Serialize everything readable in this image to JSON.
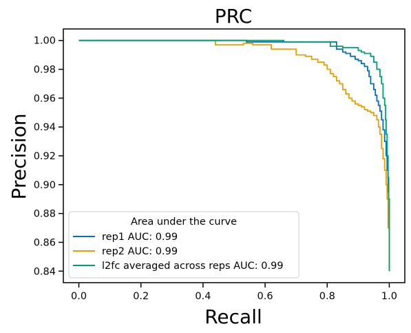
{
  "chart_data": {
    "type": "line",
    "title": "PRC",
    "xlabel": "Recall",
    "ylabel": "Precision",
    "xlim": [
      -0.05,
      1.05
    ],
    "ylim": [
      0.832,
      1.008
    ],
    "xticks": [
      0.0,
      0.2,
      0.4,
      0.6,
      0.8,
      1.0
    ],
    "xtick_labels": [
      "0.0",
      "0.2",
      "0.4",
      "0.6",
      "0.8",
      "1.0"
    ],
    "yticks": [
      0.84,
      0.86,
      0.88,
      0.9,
      0.92,
      0.94,
      0.96,
      0.98,
      1.0
    ],
    "ytick_labels": [
      "0.84",
      "0.86",
      "0.88",
      "0.90",
      "0.92",
      "0.94",
      "0.96",
      "0.98",
      "1.00"
    ],
    "grid": false,
    "legend": {
      "title": "Area under the curve",
      "placement": "lower-left"
    },
    "series": [
      {
        "name": "rep1 AUC: 0.99",
        "color": "#0072b2",
        "x": [
          0.0,
          0.53,
          0.54,
          0.82,
          0.83,
          0.85,
          0.86,
          0.875,
          0.89,
          0.9,
          0.91,
          0.92,
          0.93,
          0.935,
          0.94,
          0.95,
          0.955,
          0.96,
          0.965,
          0.97,
          0.975,
          0.98,
          0.985,
          0.99,
          0.993,
          0.996,
          0.998,
          1.0
        ],
        "y": [
          1.0,
          1.0,
          0.999,
          0.999,
          0.994,
          0.992,
          0.991,
          0.989,
          0.987,
          0.986,
          0.984,
          0.982,
          0.979,
          0.975,
          0.97,
          0.966,
          0.962,
          0.958,
          0.955,
          0.951,
          0.945,
          0.938,
          0.93,
          0.92,
          0.91,
          0.895,
          0.87,
          0.84
        ]
      },
      {
        "name": "rep2 AUC: 0.99",
        "color": "#e69f00",
        "x": [
          0.0,
          0.43,
          0.44,
          0.53,
          0.56,
          0.62,
          0.69,
          0.7,
          0.73,
          0.75,
          0.77,
          0.79,
          0.8,
          0.81,
          0.82,
          0.83,
          0.84,
          0.85,
          0.86,
          0.87,
          0.88,
          0.89,
          0.9,
          0.91,
          0.92,
          0.93,
          0.94,
          0.95,
          0.96,
          0.965,
          0.97,
          0.975,
          0.98,
          0.985,
          0.99,
          0.993,
          0.996,
          1.0
        ],
        "y": [
          1.0,
          1.0,
          0.997,
          0.998,
          0.997,
          0.994,
          0.994,
          0.99,
          0.989,
          0.987,
          0.985,
          0.983,
          0.98,
          0.977,
          0.975,
          0.972,
          0.97,
          0.966,
          0.963,
          0.96,
          0.958,
          0.956,
          0.955,
          0.954,
          0.952,
          0.951,
          0.95,
          0.948,
          0.945,
          0.94,
          0.935,
          0.925,
          0.918,
          0.91,
          0.9,
          0.89,
          0.87,
          0.84
        ]
      },
      {
        "name": "l2fc averaged across reps AUC: 0.99",
        "color": "#009e73",
        "x": [
          0.0,
          0.65,
          0.66,
          0.8,
          0.81,
          0.85,
          0.9,
          0.91,
          0.92,
          0.94,
          0.95,
          0.96,
          0.97,
          0.975,
          0.98,
          0.985,
          0.988,
          0.99,
          0.993,
          0.996,
          0.998,
          1.0
        ],
        "y": [
          1.0,
          1.0,
          0.999,
          0.999,
          0.996,
          0.995,
          0.993,
          0.992,
          0.991,
          0.989,
          0.985,
          0.98,
          0.975,
          0.97,
          0.96,
          0.955,
          0.945,
          0.935,
          0.92,
          0.905,
          0.89,
          0.84
        ]
      }
    ]
  }
}
